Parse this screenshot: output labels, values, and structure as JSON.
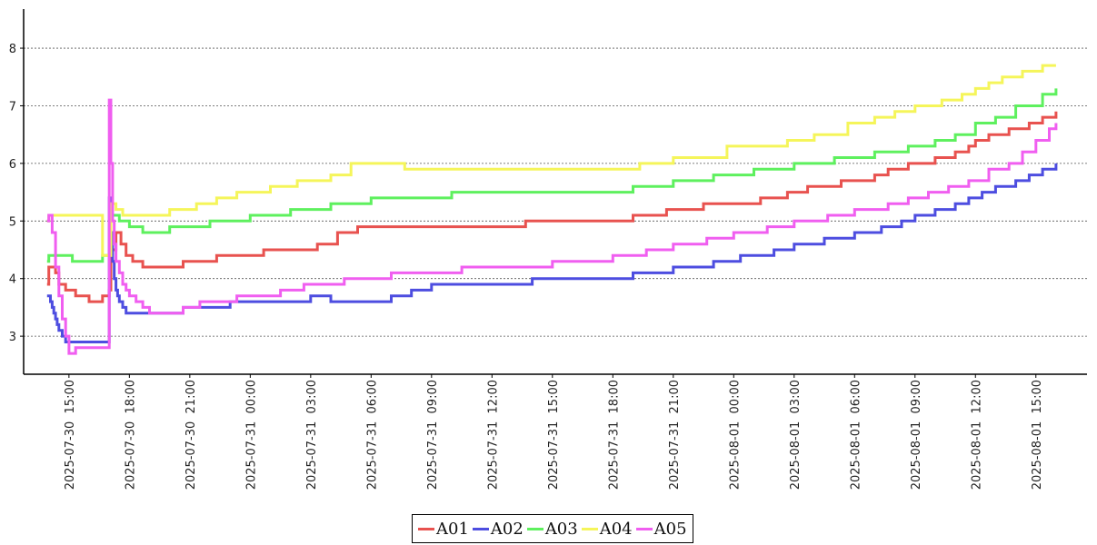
{
  "chart_data": {
    "type": "line",
    "title": "",
    "xlabel": "",
    "ylabel": "",
    "x_domain": [
      "2025-07-30 13:50",
      "2025-08-01 16:30"
    ],
    "ylim": [
      2.45,
      8.6
    ],
    "y_ticks": [
      3,
      4,
      5,
      6,
      7,
      8
    ],
    "y_tick_labels": [
      "3",
      "4",
      "5",
      "6",
      "7",
      "8"
    ],
    "x_ticks": [
      "2025-07-30 15:00",
      "2025-07-30 18:00",
      "2025-07-30 21:00",
      "2025-07-31 00:00",
      "2025-07-31 03:00",
      "2025-07-31 06:00",
      "2025-07-31 09:00",
      "2025-07-31 12:00",
      "2025-07-31 15:00",
      "2025-07-31 18:00",
      "2025-07-31 21:00",
      "2025-08-01 00:00",
      "2025-08-01 03:00",
      "2025-08-01 06:00",
      "2025-08-01 09:00",
      "2025-08-01 12:00",
      "2025-08-01 15:00"
    ],
    "x_tick_labels": [
      "2025-07-30  15:00",
      "2025-07-30  18:00",
      "2025-07-30  21:00",
      "2025-07-31  00:00",
      "2025-07-31  03:00",
      "2025-07-31  06:00",
      "2025-07-31  09:00",
      "2025-07-31  12:00",
      "2025-07-31  15:00",
      "2025-07-31  18:00",
      "2025-07-31  21:00",
      "2025-08-01  00:00",
      "2025-08-01  03:00",
      "2025-08-01  06:00",
      "2025-08-01  09:00",
      "2025-08-01  12:00",
      "2025-08-01  15:00"
    ],
    "grid": {
      "y": true,
      "x": false,
      "style": "dotted"
    },
    "legend_position": "bottom-center",
    "series": [
      {
        "name": "A01",
        "color": "#e8524f",
        "x": [
          "2025-07-30 13:55",
          "2025-07-30 14:00",
          "2025-07-30 14:20",
          "2025-07-30 14:30",
          "2025-07-30 14:50",
          "2025-07-30 15:20",
          "2025-07-30 16:00",
          "2025-07-30 16:20",
          "2025-07-30 16:40",
          "2025-07-30 17:00",
          "2025-07-30 17:05",
          "2025-07-30 17:20",
          "2025-07-30 17:35",
          "2025-07-30 17:50",
          "2025-07-30 18:10",
          "2025-07-30 18:40",
          "2025-07-30 19:00",
          "2025-07-30 20:40",
          "2025-07-30 22:20",
          "2025-07-31 00:00",
          "2025-07-31 00:40",
          "2025-07-31 03:20",
          "2025-07-31 04:20",
          "2025-07-31 05:20",
          "2025-07-31 13:40",
          "2025-07-31 19:00",
          "2025-07-31 20:40",
          "2025-07-31 22:30",
          "2025-08-01 00:00",
          "2025-08-01 01:20",
          "2025-08-01 02:40",
          "2025-08-01 03:40",
          "2025-08-01 05:20",
          "2025-08-01 07:00",
          "2025-08-01 07:40",
          "2025-08-01 08:40",
          "2025-08-01 10:00",
          "2025-08-01 11:00",
          "2025-08-01 11:40",
          "2025-08-01 12:00",
          "2025-08-01 12:40",
          "2025-08-01 13:40",
          "2025-08-01 14:40",
          "2025-08-01 15:20",
          "2025-08-01 16:00"
        ],
        "y": [
          3.9,
          4.2,
          4.1,
          3.9,
          3.8,
          3.7,
          3.6,
          3.6,
          3.7,
          3.8,
          4.5,
          4.8,
          4.6,
          4.4,
          4.3,
          4.2,
          4.2,
          4.3,
          4.4,
          4.4,
          4.5,
          4.6,
          4.8,
          4.9,
          5.0,
          5.1,
          5.2,
          5.3,
          5.3,
          5.4,
          5.5,
          5.6,
          5.7,
          5.8,
          5.9,
          6.0,
          6.1,
          6.2,
          6.3,
          6.4,
          6.5,
          6.6,
          6.7,
          6.8,
          6.9
        ]
      },
      {
        "name": "A02",
        "color": "#4d4de0",
        "x": [
          "2025-07-30 13:55",
          "2025-07-30 14:05",
          "2025-07-30 14:10",
          "2025-07-30 14:15",
          "2025-07-30 14:20",
          "2025-07-30 14:25",
          "2025-07-30 14:30",
          "2025-07-30 14:40",
          "2025-07-30 14:50",
          "2025-07-30 15:00",
          "2025-07-30 15:20",
          "2025-07-30 16:00",
          "2025-07-30 16:20",
          "2025-07-30 16:40",
          "2025-07-30 17:00",
          "2025-07-30 17:05",
          "2025-07-30 17:10",
          "2025-07-30 17:15",
          "2025-07-30 17:20",
          "2025-07-30 17:25",
          "2025-07-30 17:30",
          "2025-07-30 17:40",
          "2025-07-30 17:50",
          "2025-07-30 18:10",
          "2025-07-30 20:40",
          "2025-07-30 23:00",
          "2025-07-31 03:00",
          "2025-07-31 04:00",
          "2025-07-31 07:00",
          "2025-07-31 08:00",
          "2025-07-31 09:00",
          "2025-07-31 14:00",
          "2025-07-31 19:00",
          "2025-07-31 21:00",
          "2025-07-31 23:00",
          "2025-08-01 00:20",
          "2025-08-01 02:00",
          "2025-08-01 03:00",
          "2025-08-01 04:30",
          "2025-08-01 06:00",
          "2025-08-01 07:20",
          "2025-08-01 08:20",
          "2025-08-01 09:00",
          "2025-08-01 10:00",
          "2025-08-01 11:00",
          "2025-08-01 11:40",
          "2025-08-01 12:20",
          "2025-08-01 13:00",
          "2025-08-01 14:00",
          "2025-08-01 14:40",
          "2025-08-01 15:20",
          "2025-08-01 16:00"
        ],
        "y": [
          3.7,
          3.6,
          3.5,
          3.4,
          3.3,
          3.2,
          3.1,
          3.0,
          2.9,
          2.9,
          2.9,
          2.9,
          2.9,
          2.9,
          5.4,
          4.8,
          4.3,
          4.0,
          3.8,
          3.7,
          3.6,
          3.5,
          3.4,
          3.4,
          3.5,
          3.6,
          3.7,
          3.6,
          3.7,
          3.8,
          3.9,
          4.0,
          4.1,
          4.2,
          4.3,
          4.4,
          4.5,
          4.6,
          4.7,
          4.8,
          4.9,
          5.0,
          5.1,
          5.2,
          5.3,
          5.4,
          5.5,
          5.6,
          5.7,
          5.8,
          5.9,
          6.0
        ]
      },
      {
        "name": "A03",
        "color": "#5ef05e",
        "x": [
          "2025-07-30 13:55",
          "2025-07-30 14:00",
          "2025-07-30 15:10",
          "2025-07-30 16:40",
          "2025-07-30 17:05",
          "2025-07-30 17:30",
          "2025-07-30 18:00",
          "2025-07-30 18:40",
          "2025-07-30 20:00",
          "2025-07-30 22:00",
          "2025-07-31 00:00",
          "2025-07-31 02:00",
          "2025-07-31 04:00",
          "2025-07-31 06:00",
          "2025-07-31 10:00",
          "2025-07-31 19:00",
          "2025-07-31 21:00",
          "2025-07-31 23:00",
          "2025-08-01 01:00",
          "2025-08-01 03:00",
          "2025-08-01 05:00",
          "2025-08-01 07:00",
          "2025-08-01 08:40",
          "2025-08-01 10:00",
          "2025-08-01 11:00",
          "2025-08-01 12:00",
          "2025-08-01 13:00",
          "2025-08-01 14:00",
          "2025-08-01 15:20",
          "2025-08-01 16:00"
        ],
        "y": [
          4.3,
          4.4,
          4.3,
          4.4,
          5.1,
          5.0,
          4.9,
          4.8,
          4.9,
          5.0,
          5.1,
          5.2,
          5.3,
          5.4,
          5.5,
          5.6,
          5.7,
          5.8,
          5.9,
          6.0,
          6.1,
          6.2,
          6.3,
          6.4,
          6.5,
          6.7,
          6.8,
          7.0,
          7.2,
          7.3
        ]
      },
      {
        "name": "A04",
        "color": "#f5f55a",
        "x": [
          "2025-07-30 13:55",
          "2025-07-30 14:00",
          "2025-07-30 16:40",
          "2025-07-30 17:05",
          "2025-07-30 17:20",
          "2025-07-30 17:40",
          "2025-07-30 18:20",
          "2025-07-30 20:00",
          "2025-07-30 21:20",
          "2025-07-30 22:20",
          "2025-07-30 23:20",
          "2025-07-31 01:00",
          "2025-07-31 02:20",
          "2025-07-31 04:00",
          "2025-07-31 05:00",
          "2025-07-31 07:40",
          "2025-07-31 19:20",
          "2025-07-31 21:00",
          "2025-07-31 23:40",
          "2025-08-01 02:40",
          "2025-08-01 04:00",
          "2025-08-01 05:40",
          "2025-08-01 07:00",
          "2025-08-01 08:00",
          "2025-08-01 09:00",
          "2025-08-01 10:20",
          "2025-08-01 11:20",
          "2025-08-01 12:00",
          "2025-08-01 12:40",
          "2025-08-01 13:20",
          "2025-08-01 14:20",
          "2025-08-01 15:20",
          "2025-08-01 16:00"
        ],
        "y": [
          5.0,
          5.1,
          4.4,
          5.3,
          5.2,
          5.1,
          5.1,
          5.2,
          5.3,
          5.4,
          5.5,
          5.6,
          5.7,
          5.8,
          6.0,
          5.9,
          6.0,
          6.1,
          6.3,
          6.4,
          6.5,
          6.7,
          6.8,
          6.9,
          7.0,
          7.1,
          7.2,
          7.3,
          7.4,
          7.5,
          7.6,
          7.7,
          7.7
        ]
      },
      {
        "name": "A05",
        "color": "#f05ef0",
        "x": [
          "2025-07-30 13:55",
          "2025-07-30 14:00",
          "2025-07-30 14:10",
          "2025-07-30 14:20",
          "2025-07-30 14:30",
          "2025-07-30 14:40",
          "2025-07-30 14:50",
          "2025-07-30 15:00",
          "2025-07-30 15:20",
          "2025-07-30 16:00",
          "2025-07-30 16:40",
          "2025-07-30 17:00",
          "2025-07-30 17:05",
          "2025-07-30 17:10",
          "2025-07-30 17:15",
          "2025-07-30 17:20",
          "2025-07-30 17:30",
          "2025-07-30 17:40",
          "2025-07-30 17:50",
          "2025-07-30 18:00",
          "2025-07-30 18:20",
          "2025-07-30 18:40",
          "2025-07-30 19:00",
          "2025-07-30 20:40",
          "2025-07-30 21:30",
          "2025-07-30 23:20",
          "2025-07-31 01:30",
          "2025-07-31 02:40",
          "2025-07-31 04:40",
          "2025-07-31 07:00",
          "2025-07-31 08:20",
          "2025-07-31 10:30",
          "2025-07-31 15:00",
          "2025-07-31 18:00",
          "2025-07-31 19:40",
          "2025-07-31 21:00",
          "2025-07-31 22:40",
          "2025-08-01 00:00",
          "2025-08-01 01:40",
          "2025-08-01 03:00",
          "2025-08-01 04:40",
          "2025-08-01 06:00",
          "2025-08-01 07:40",
          "2025-08-01 08:40",
          "2025-08-01 09:40",
          "2025-08-01 10:40",
          "2025-08-01 11:40",
          "2025-08-01 12:40",
          "2025-08-01 13:40",
          "2025-08-01 14:20",
          "2025-08-01 15:00",
          "2025-08-01 15:40",
          "2025-08-01 16:00"
        ],
        "y": [
          5.0,
          5.1,
          4.8,
          4.2,
          3.7,
          3.3,
          3.0,
          2.7,
          2.8,
          2.8,
          2.8,
          7.1,
          6.0,
          5.0,
          4.6,
          4.3,
          4.1,
          3.9,
          3.8,
          3.7,
          3.6,
          3.5,
          3.4,
          3.5,
          3.6,
          3.7,
          3.8,
          3.9,
          4.0,
          4.1,
          4.1,
          4.2,
          4.3,
          4.4,
          4.5,
          4.6,
          4.7,
          4.8,
          4.9,
          5.0,
          5.1,
          5.2,
          5.3,
          5.4,
          5.5,
          5.6,
          5.7,
          5.9,
          6.0,
          6.2,
          6.4,
          6.6,
          6.7
        ]
      }
    ]
  }
}
